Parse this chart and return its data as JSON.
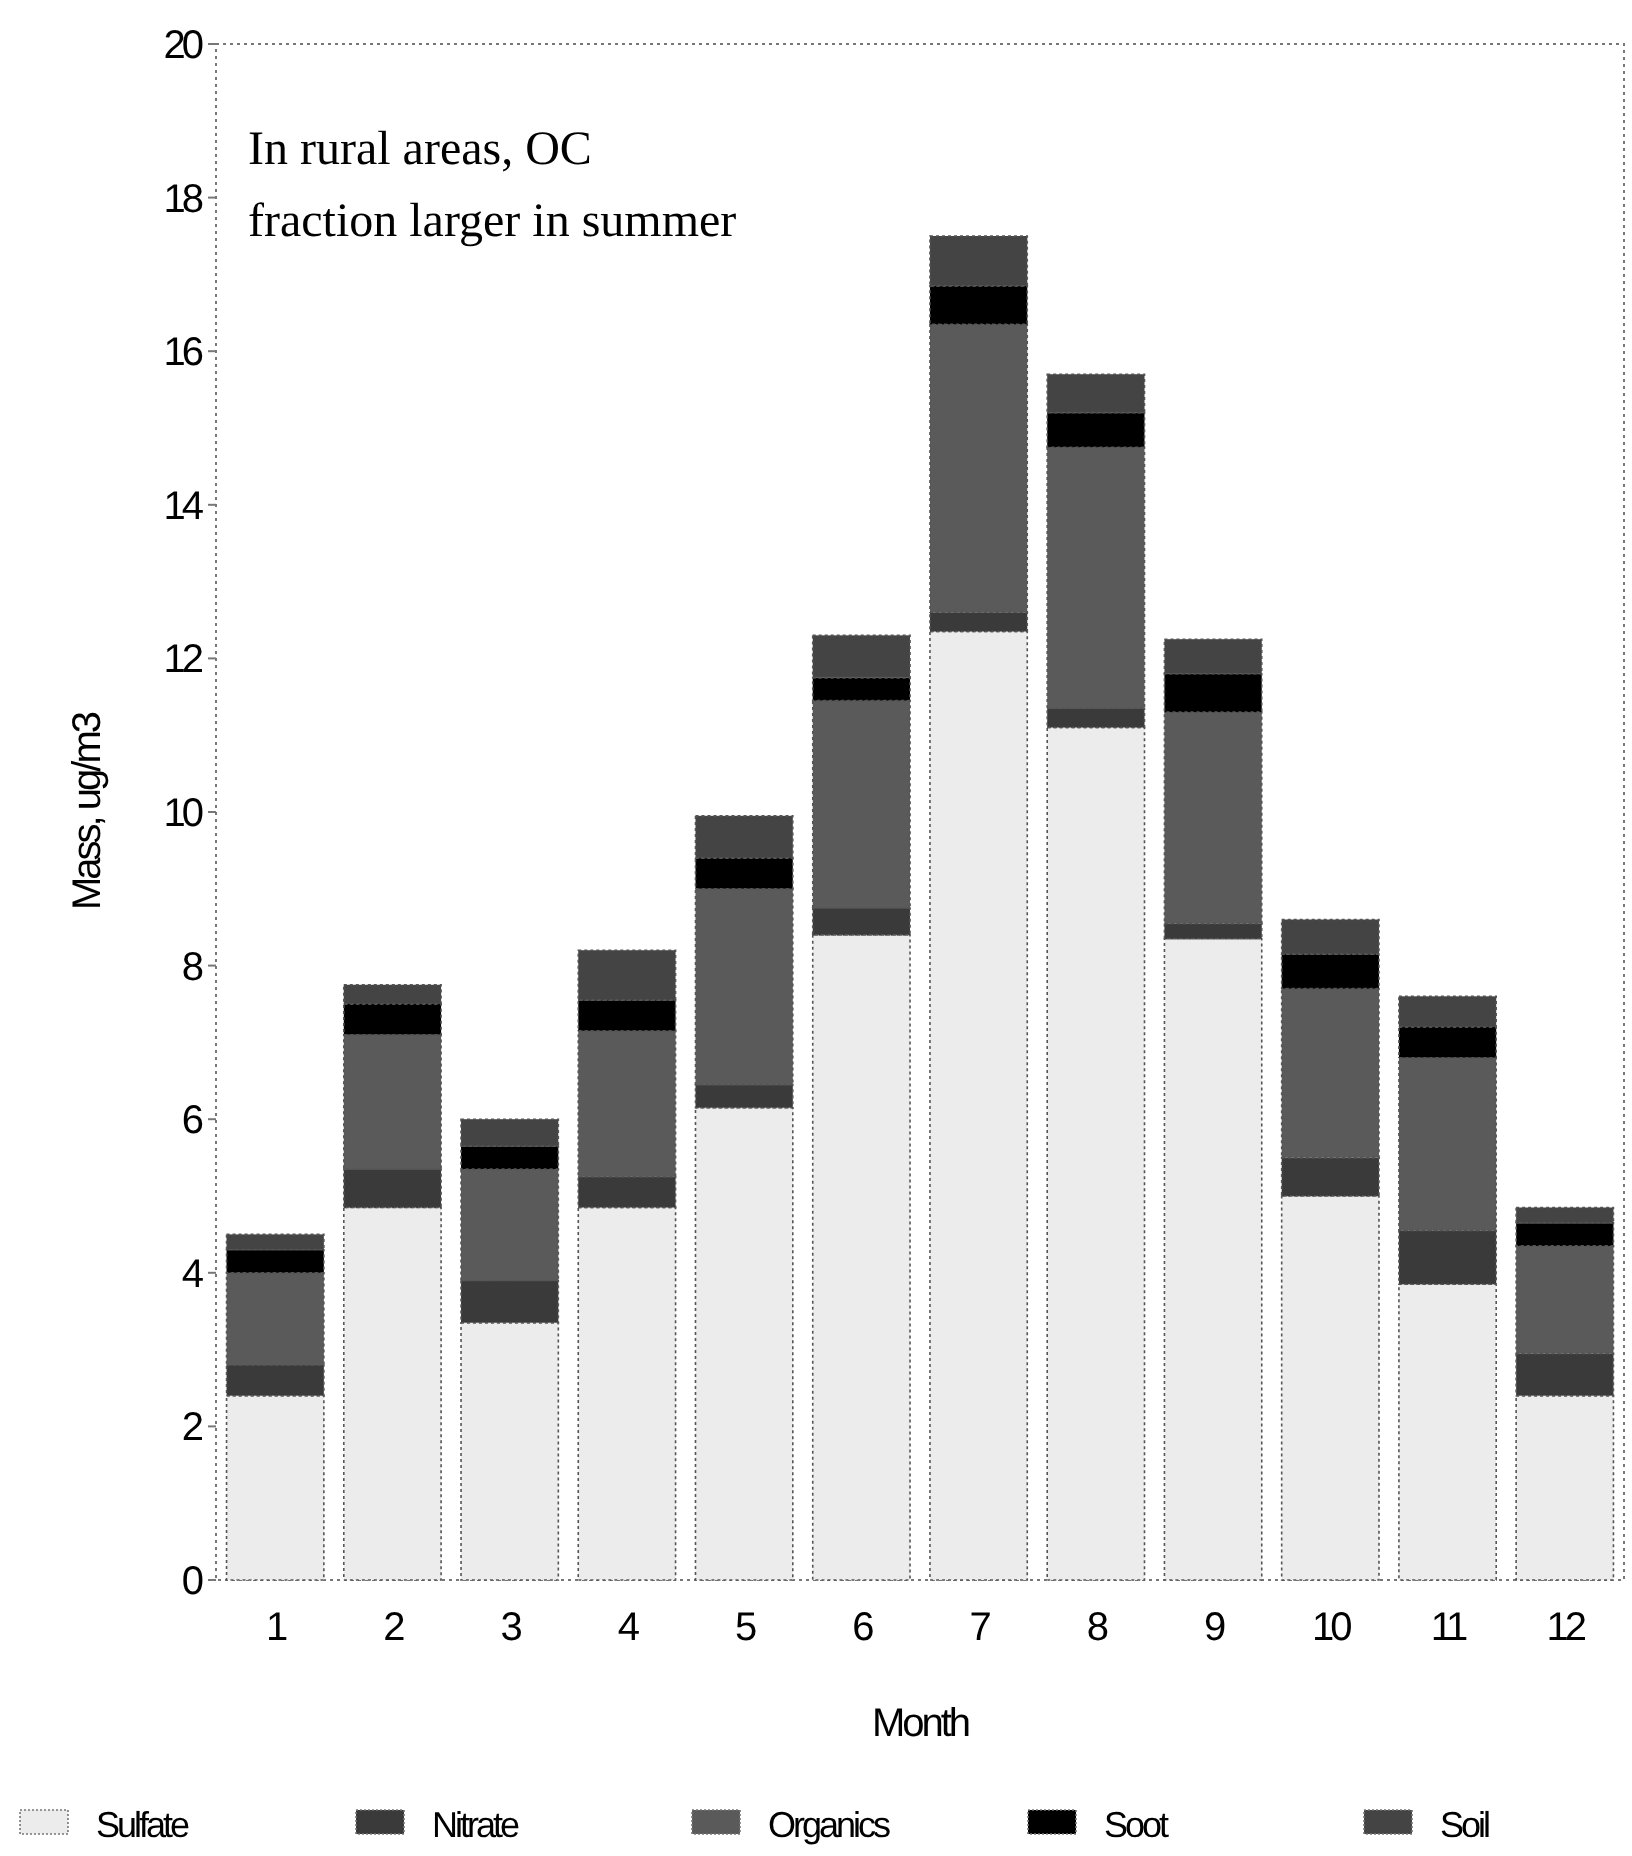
{
  "chart_data": {
    "type": "bar",
    "stacked": true,
    "xlabel": "Month",
    "ylabel": "Mass, ug/m3",
    "categories": [
      "1",
      "2",
      "3",
      "4",
      "5",
      "6",
      "7",
      "8",
      "9",
      "10",
      "11",
      "12"
    ],
    "series": [
      {
        "name": "Sulfate",
        "color": "#ececec",
        "values": [
          2.4,
          4.85,
          3.35,
          4.85,
          6.15,
          8.4,
          12.35,
          11.1,
          8.35,
          5.0,
          3.85,
          2.4
        ]
      },
      {
        "name": "Nitrate",
        "color": "#3a3a3a",
        "values": [
          0.4,
          0.5,
          0.55,
          0.4,
          0.3,
          0.35,
          0.25,
          0.25,
          0.2,
          0.5,
          0.7,
          0.55
        ]
      },
      {
        "name": "Organics",
        "color": "#5a5a5a",
        "values": [
          1.2,
          1.75,
          1.45,
          1.9,
          2.55,
          2.7,
          3.75,
          3.4,
          2.75,
          2.2,
          2.25,
          1.4
        ]
      },
      {
        "name": "Soot",
        "color": "#000000",
        "values": [
          0.3,
          0.4,
          0.3,
          0.4,
          0.4,
          0.3,
          0.5,
          0.45,
          0.5,
          0.45,
          0.4,
          0.3
        ]
      },
      {
        "name": "Soil",
        "color": "#444444",
        "values": [
          0.2,
          0.25,
          0.35,
          0.65,
          0.55,
          0.55,
          0.65,
          0.5,
          0.45,
          0.45,
          0.4,
          0.2
        ]
      }
    ],
    "ylim": [
      0,
      20
    ],
    "yticks": [
      0,
      2,
      4,
      6,
      8,
      10,
      12,
      14,
      16,
      18,
      20
    ],
    "grid": false,
    "legend": "bottom",
    "annotations": [
      "In rural areas, OC\nfraction larger in summer"
    ]
  }
}
